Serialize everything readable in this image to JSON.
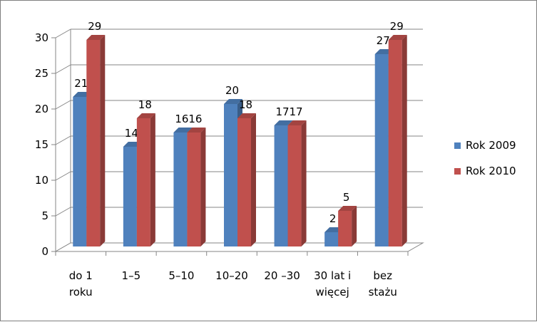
{
  "chart_data": {
    "type": "bar",
    "categories": [
      [
        "do 1",
        "roku"
      ],
      [
        "1–5"
      ],
      [
        "5–10"
      ],
      [
        "10–20"
      ],
      [
        "20 –30"
      ],
      [
        "30 lat i",
        "więcej"
      ],
      [
        "bez",
        "stażu"
      ]
    ],
    "series": [
      {
        "name": "Rok 2009",
        "color": "#4f81bd",
        "values": [
          21,
          14,
          16,
          20,
          17,
          2,
          27
        ]
      },
      {
        "name": "Rok 2010",
        "color": "#c0504d",
        "values": [
          29,
          18,
          16,
          18,
          17,
          5,
          29
        ]
      }
    ],
    "ylim": [
      0,
      30
    ],
    "yticks": [
      0,
      5,
      10,
      15,
      20,
      25,
      30
    ],
    "grid": true,
    "legend_position": "right",
    "xlabel": "",
    "ylabel": "",
    "title": ""
  }
}
